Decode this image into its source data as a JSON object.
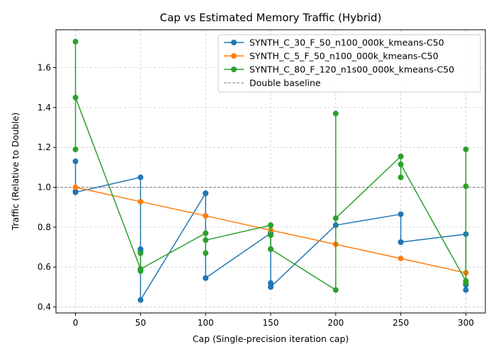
{
  "chart_data": {
    "type": "line",
    "title": "Cap vs Estimated Memory Traffic (Hybrid)",
    "xlabel": "Cap (Single-precision iteration cap)",
    "ylabel": "Traffic (Relative to Double)",
    "xlim": [
      -15,
      315
    ],
    "ylim": [
      0.37,
      1.79
    ],
    "x_ticks": [
      0,
      50,
      100,
      150,
      200,
      250,
      300
    ],
    "y_ticks": [
      0.4,
      0.6,
      0.8,
      1.0,
      1.2,
      1.4,
      1.6
    ],
    "x_tick_labels": [
      "0",
      "50",
      "100",
      "150",
      "200",
      "250",
      "300"
    ],
    "y_tick_labels": [
      "0.4",
      "0.6",
      "0.8",
      "1.0",
      "1.2",
      "1.4",
      "1.6"
    ],
    "grid": true,
    "legend_position": "upper right",
    "series": [
      {
        "name": "SYNTH_C_30_F_50_n100_000k_kmeans-C50",
        "color": "#1f77b4",
        "points": [
          [
            0,
            1.13
          ],
          [
            0,
            0.98
          ],
          [
            0,
            0.975
          ],
          [
            50,
            1.05
          ],
          [
            50,
            0.69
          ],
          [
            50,
            0.68
          ],
          [
            50,
            0.435
          ],
          [
            100,
            0.97
          ],
          [
            100,
            0.97
          ],
          [
            100,
            0.545
          ],
          [
            100,
            0.545
          ],
          [
            150,
            0.77
          ],
          [
            150,
            0.52
          ],
          [
            150,
            0.5
          ],
          [
            200,
            0.81
          ],
          [
            200,
            0.81
          ],
          [
            250,
            0.865
          ],
          [
            250,
            0.725
          ],
          [
            250,
            0.725
          ],
          [
            300,
            0.765
          ],
          [
            300,
            0.51
          ],
          [
            300,
            0.485
          ]
        ]
      },
      {
        "name": "SYNTH_C_5_F_50_n100_000k_kmeans-C50",
        "color": "#ff7f0e",
        "points": [
          [
            0,
            1.0
          ],
          [
            50,
            0.928
          ],
          [
            100,
            0.857
          ],
          [
            150,
            0.785
          ],
          [
            200,
            0.714
          ],
          [
            250,
            0.643
          ],
          [
            300,
            0.571
          ]
        ]
      },
      {
        "name": "SYNTH_C_80_F_120_n1s00_000k_kmeans-C50",
        "color": "#2ca02c",
        "points": [
          [
            0,
            1.73
          ],
          [
            0,
            1.19
          ],
          [
            0,
            1.45
          ],
          [
            50,
            0.59
          ],
          [
            50,
            0.58
          ],
          [
            50,
            0.67
          ],
          [
            50,
            0.59
          ],
          [
            100,
            0.77
          ],
          [
            100,
            0.67
          ],
          [
            100,
            0.735
          ],
          [
            150,
            0.81
          ],
          [
            150,
            0.76
          ],
          [
            150,
            0.69
          ],
          [
            150,
            0.69
          ],
          [
            200,
            0.485
          ],
          [
            200,
            1.37
          ],
          [
            200,
            0.845
          ],
          [
            250,
            1.155
          ],
          [
            250,
            1.05
          ],
          [
            250,
            1.115
          ],
          [
            300,
            0.53
          ],
          [
            300,
            1.19
          ],
          [
            300,
            1.005
          ],
          [
            300,
            0.52
          ]
        ]
      }
    ],
    "reference_line": {
      "name": "Double baseline",
      "y": 1.0,
      "color": "#7f7f7f",
      "style": "dashed"
    }
  }
}
